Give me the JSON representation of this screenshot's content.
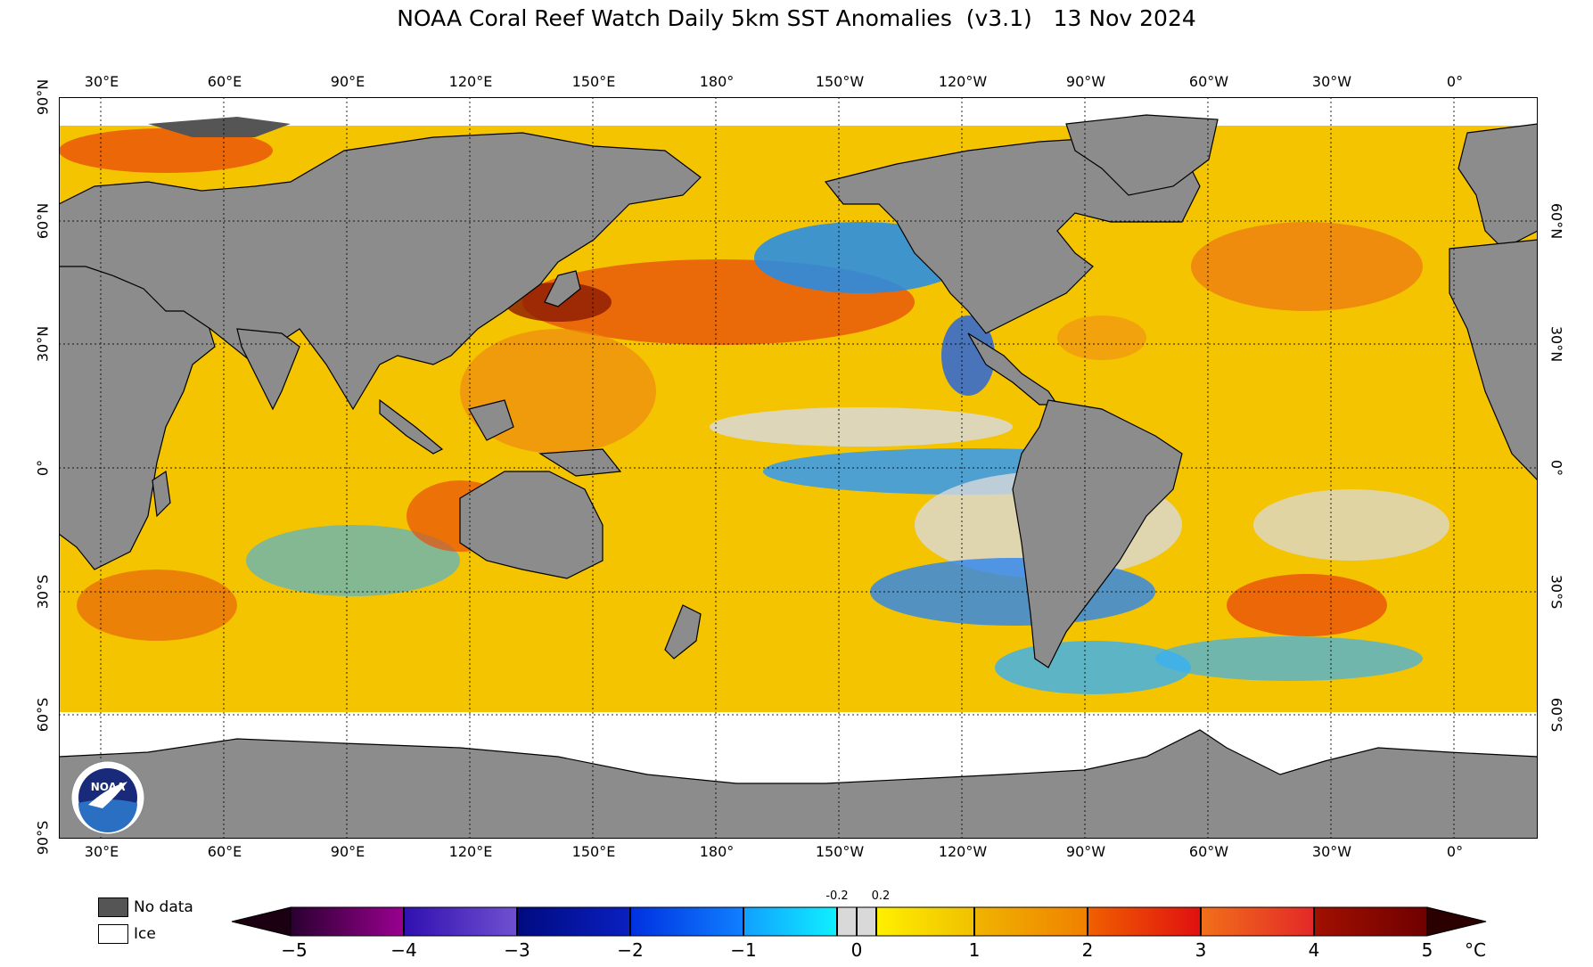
{
  "title": "NOAA Coral Reef Watch Daily 5km SST Anomalies  (v3.1)   13 Nov 2024",
  "lon_labels": [
    "30°E",
    "60°E",
    "90°E",
    "120°E",
    "150°E",
    "180°",
    "150°W",
    "120°W",
    "90°W",
    "60°W",
    "30°W",
    "0°"
  ],
  "lat_labels": [
    "90°N",
    "60°N",
    "30°N",
    "0°",
    "30°S",
    "60°S",
    "90°S"
  ],
  "right_lat_labels": [
    "60°N",
    "30°N",
    "0°",
    "30°S",
    "60°S"
  ],
  "legend": {
    "nodata": "No data",
    "ice": "Ice"
  },
  "colorbar": {
    "ticks": [
      "−5",
      "−4",
      "−3",
      "−2",
      "−1",
      "0",
      "1",
      "2",
      "3",
      "4",
      "5"
    ],
    "inner_ticks": [
      "-0.2",
      "0.2"
    ],
    "unit": "°C",
    "range": [
      -5,
      5
    ]
  },
  "logo": {
    "text": "NOAA"
  },
  "colors": {
    "land": "#8c8c8c",
    "nodata": "#555555",
    "ice": "#ffffff",
    "neutral": "#d9d9d9"
  }
}
